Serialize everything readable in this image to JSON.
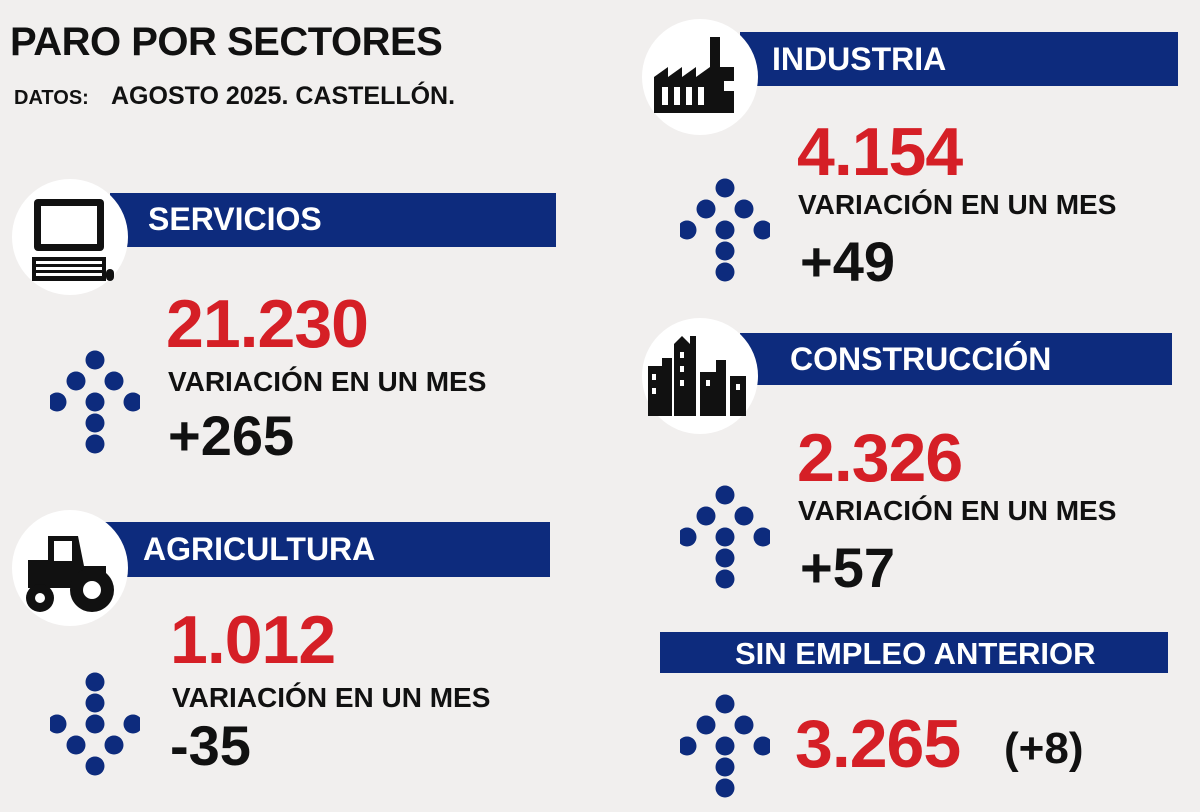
{
  "header": {
    "title": "PARO POR SECTORES",
    "subtitle_label": "DATOS:",
    "subtitle": "AGOSTO 2025. CASTELLÓN."
  },
  "sectors": [
    {
      "name": "SERVICIOS",
      "value": "21.230",
      "variation_label": "VARIACIÓN EN UN MES",
      "variation": "+265"
    },
    {
      "name": "AGRICULTURA",
      "value": "1.012",
      "variation_label": "VARIACIÓN EN UN MES",
      "variation": "-35"
    },
    {
      "name": "INDUSTRIA",
      "value": "4.154",
      "variation_label": "VARIACIÓN EN UN MES",
      "variation": "+49"
    },
    {
      "name": "CONSTRUCCIÓN",
      "value": "2.326",
      "variation_label": "VARIACIÓN EN UN MES",
      "variation": "+57"
    }
  ],
  "no_prior_job": {
    "name": "SIN EMPLEO ANTERIOR",
    "value": "3.265",
    "variation": "(+8)"
  }
}
